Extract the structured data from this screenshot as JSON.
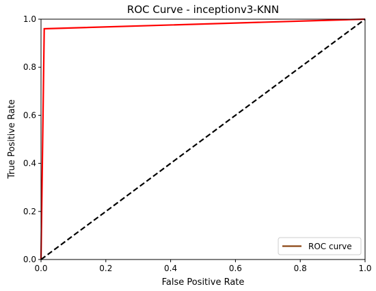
{
  "chart_data": {
    "type": "line",
    "title": "ROC Curve - inceptionv3-KNN",
    "xlabel": "False Positive Rate",
    "ylabel": "True Positive Rate",
    "xlim": [
      0.0,
      1.0
    ],
    "ylim": [
      0.0,
      1.0
    ],
    "xticks": [
      "0.0",
      "0.2",
      "0.4",
      "0.6",
      "0.8",
      "1.0"
    ],
    "yticks": [
      "0.0",
      "0.2",
      "0.4",
      "0.6",
      "0.8",
      "1.0"
    ],
    "grid": false,
    "legend": {
      "entries": [
        "ROC curve"
      ],
      "placement": "lower right"
    },
    "series": [
      {
        "name": "ROC curve",
        "color": "#ff0000",
        "legend_color": "#8b4513",
        "style": "solid",
        "x": [
          0.0,
          0.01,
          1.0
        ],
        "y": [
          0.0,
          0.96,
          1.0
        ]
      },
      {
        "color": "#000000",
        "style": "dashed",
        "x": [
          0.0,
          1.0
        ],
        "y": [
          0.0,
          1.0
        ]
      }
    ]
  }
}
